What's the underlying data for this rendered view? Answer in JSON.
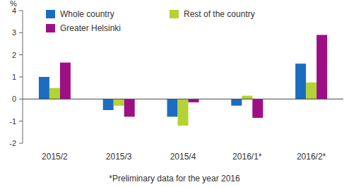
{
  "chart_data": {
    "type": "bar",
    "y_label": "%",
    "categories": [
      "2015/2",
      "2015/3",
      "2015/4",
      "2016/1*",
      "2016/2*"
    ],
    "series": [
      {
        "name": "Whole country",
        "color": "#1b6dc1",
        "values": [
          1.0,
          -0.5,
          -0.8,
          -0.3,
          1.6
        ]
      },
      {
        "name": "Rest of the country",
        "color": "#b4d334",
        "values": [
          0.5,
          -0.3,
          -1.2,
          0.15,
          0.75
        ]
      },
      {
        "name": "Greater Helsinki",
        "color": "#9e0f86",
        "values": [
          1.65,
          -0.8,
          -0.15,
          -0.85,
          2.9
        ]
      }
    ],
    "ylim": [
      -2,
      4
    ],
    "yticks": [
      -2,
      -1,
      0,
      1,
      2,
      3,
      4
    ],
    "grid": false,
    "legend": "top-left",
    "annotations": [
      "*Preliminary data for the year 2016"
    ]
  }
}
